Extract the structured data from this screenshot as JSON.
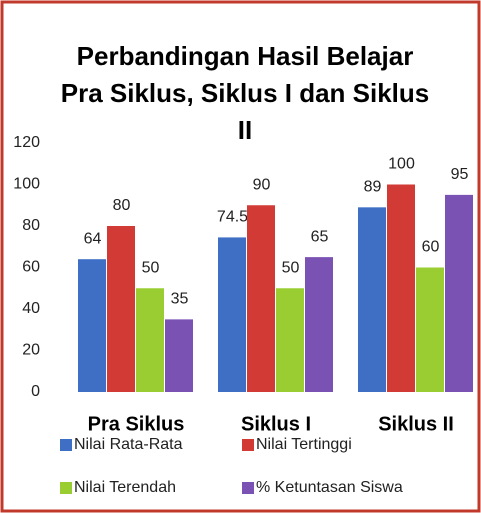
{
  "chart_data": {
    "type": "bar",
    "title": "Perbandingan Hasil Belajar Pra Siklus, Siklus I dan Siklus II",
    "categories": [
      "Pra Siklus",
      "Siklus I",
      "Siklus II"
    ],
    "series": [
      {
        "name": "Nilai Rata-Rata",
        "color": "#3f6fc4",
        "values": [
          64,
          74.5,
          89
        ]
      },
      {
        "name": "Nilai Tertinggi",
        "color": "#d23a36",
        "values": [
          80,
          90,
          100
        ]
      },
      {
        "name": "Nilai Terendah",
        "color": "#9acd32",
        "values": [
          50,
          50,
          60
        ]
      },
      {
        "name": "% Ketuntasan Siswa",
        "color": "#7a52b3",
        "values": [
          35,
          65,
          95
        ]
      }
    ],
    "ylim": [
      0,
      120
    ],
    "yticks": [
      0,
      20,
      40,
      60,
      80,
      100,
      120
    ],
    "grid": false,
    "legend": "bottom"
  }
}
